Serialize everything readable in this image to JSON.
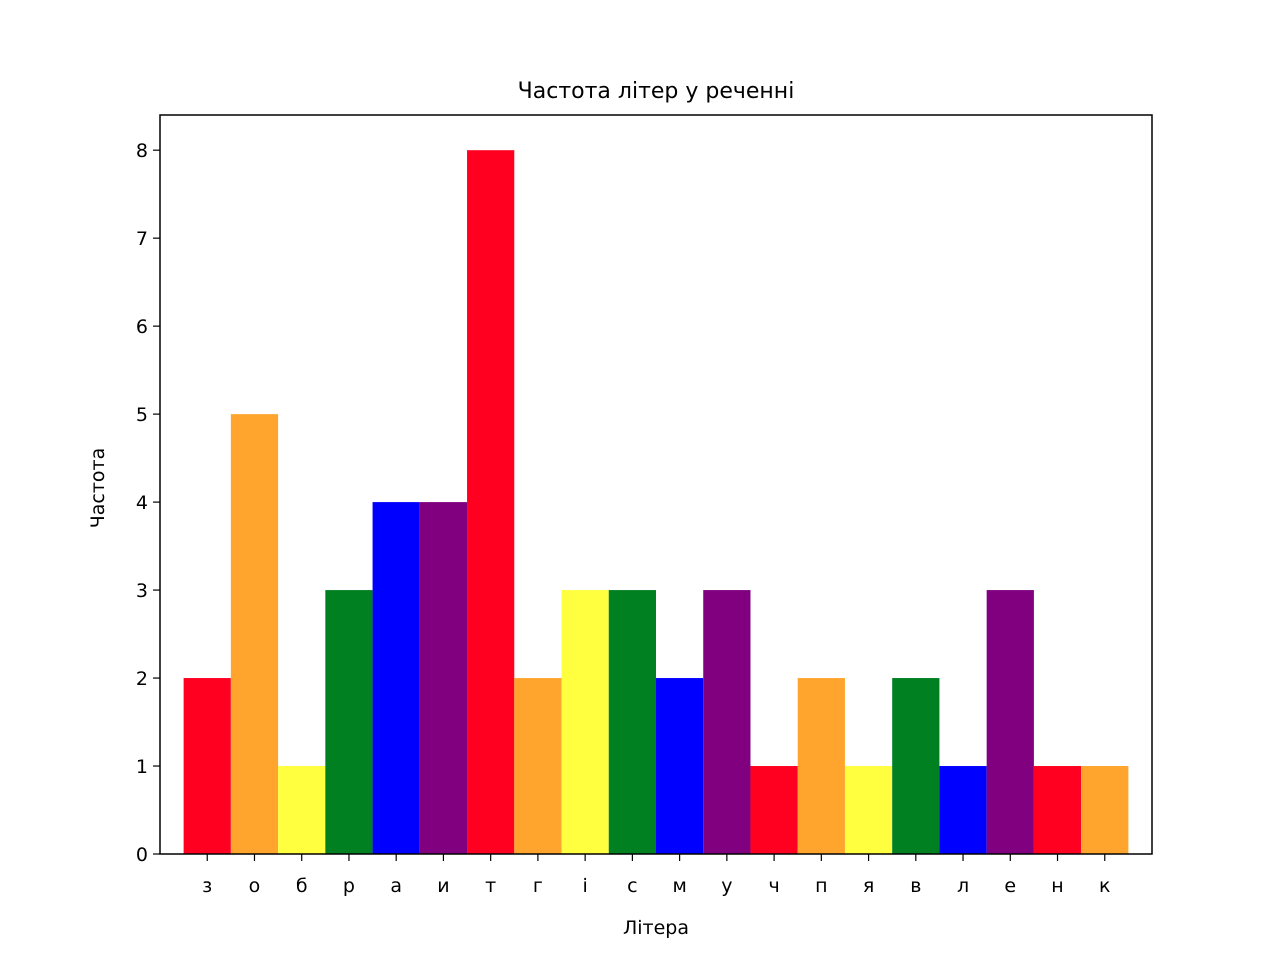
{
  "chart_data": {
    "type": "bar",
    "title": "Частота літер у реченні",
    "xlabel": "Літера",
    "ylabel": "Частота",
    "categories": [
      "з",
      "о",
      "б",
      "р",
      "а",
      "и",
      "т",
      "г",
      "і",
      "с",
      "м",
      "у",
      "ч",
      "п",
      "я",
      "в",
      "л",
      "е",
      "н",
      "к"
    ],
    "values": [
      2,
      5,
      1,
      3,
      4,
      4,
      8,
      2,
      3,
      3,
      2,
      3,
      1,
      2,
      1,
      2,
      1,
      3,
      1,
      1
    ],
    "bar_colors": [
      "#ff0020",
      "#ffa52e",
      "#ffff40",
      "#008020",
      "#0000ff",
      "#800080",
      "#ff0020",
      "#ffa52e",
      "#ffff40",
      "#008020",
      "#0000ff",
      "#800080",
      "#ff0020",
      "#ffa52e",
      "#ffff40",
      "#008020",
      "#0000ff",
      "#800080",
      "#ff0020",
      "#ffa52e"
    ],
    "ylim": [
      0,
      8.4
    ],
    "yticks": [
      0,
      1,
      2,
      3,
      4,
      5,
      6,
      7,
      8
    ],
    "grid": false,
    "legend": "none"
  }
}
